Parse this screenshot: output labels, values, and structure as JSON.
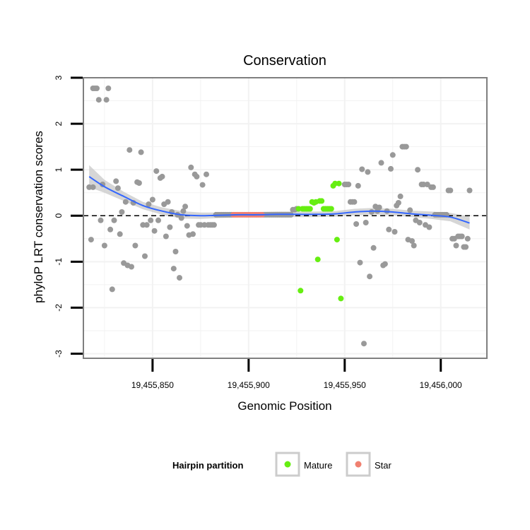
{
  "chart_data": {
    "type": "scatter",
    "title": "Conservation",
    "xlabel": "Genomic Position",
    "ylabel": "phyloP LRT conservation scores",
    "xlim": [
      19455814,
      19456024
    ],
    "ylim": [
      -3.1,
      3.0
    ],
    "x_ticks": [
      {
        "value": 19455850,
        "label": "19,455,850"
      },
      {
        "value": 19455900,
        "label": "19,455,900"
      },
      {
        "value": 19455950,
        "label": "19,455,950"
      },
      {
        "value": 19456000,
        "label": "19,456,000"
      }
    ],
    "y_ticks": [
      {
        "value": -3,
        "label": "-3"
      },
      {
        "value": -2,
        "label": "-2"
      },
      {
        "value": -1,
        "label": "-1"
      },
      {
        "value": 0,
        "label": "0"
      },
      {
        "value": 1,
        "label": "1"
      },
      {
        "value": 2,
        "label": "2"
      },
      {
        "value": 3,
        "label": "3"
      }
    ],
    "reference_line": {
      "y": 0,
      "style": "dashed",
      "color": "#000000"
    },
    "colors": {
      "other": "#999999",
      "mature": "#66ee11",
      "star": "#f08070",
      "smooth": "#3366ff",
      "ribbon": "#c8c8c8",
      "grid": "#f2f2f2",
      "border": "#7f7f7f"
    },
    "series": [
      {
        "name": "Other",
        "in_legend": false,
        "points": [
          [
            19455817,
            0.62
          ],
          [
            19455818,
            -0.52
          ],
          [
            19455819,
            2.77
          ],
          [
            19455819,
            0.62
          ],
          [
            19455820,
            2.77
          ],
          [
            19455821,
            2.77
          ],
          [
            19455822,
            2.52
          ],
          [
            19455823,
            -0.1
          ],
          [
            19455824,
            0.68
          ],
          [
            19455825,
            -0.65
          ],
          [
            19455826,
            2.52
          ],
          [
            19455827,
            2.77
          ],
          [
            19455828,
            -0.3
          ],
          [
            19455829,
            -1.6
          ],
          [
            19455830,
            -0.1
          ],
          [
            19455831,
            0.75
          ],
          [
            19455832,
            0.6
          ],
          [
            19455833,
            -0.4
          ],
          [
            19455834,
            0.08
          ],
          [
            19455835,
            -1.03
          ],
          [
            19455836,
            0.3
          ],
          [
            19455837,
            -1.08
          ],
          [
            19455838,
            1.43
          ],
          [
            19455839,
            -1.11
          ],
          [
            19455840,
            0.28
          ],
          [
            19455841,
            -0.65
          ],
          [
            19455842,
            0.73
          ],
          [
            19455843,
            0.71
          ],
          [
            19455844,
            1.38
          ],
          [
            19455845,
            -0.2
          ],
          [
            19455846,
            -0.88
          ],
          [
            19455847,
            -0.2
          ],
          [
            19455848,
            0.25
          ],
          [
            19455849,
            -0.1
          ],
          [
            19455850,
            0.35
          ],
          [
            19455851,
            -0.33
          ],
          [
            19455852,
            0.97
          ],
          [
            19455853,
            -0.1
          ],
          [
            19455854,
            0.82
          ],
          [
            19455855,
            0.85
          ],
          [
            19455856,
            0.25
          ],
          [
            19455857,
            -0.45
          ],
          [
            19455858,
            0.3
          ],
          [
            19455859,
            -0.25
          ],
          [
            19455860,
            0.08
          ],
          [
            19455861,
            -1.15
          ],
          [
            19455862,
            -0.78
          ],
          [
            19455863,
            0.02
          ],
          [
            19455864,
            -1.35
          ],
          [
            19455865,
            -0.05
          ],
          [
            19455866,
            0.1
          ],
          [
            19455867,
            0.2
          ],
          [
            19455868,
            -0.22
          ],
          [
            19455869,
            -0.42
          ],
          [
            19455870,
            1.05
          ],
          [
            19455871,
            -0.4
          ],
          [
            19455872,
            0.9
          ],
          [
            19455873,
            0.85
          ],
          [
            19455874,
            -0.2
          ],
          [
            19455875,
            -0.2
          ],
          [
            19455876,
            0.67
          ],
          [
            19455877,
            -0.2
          ],
          [
            19455878,
            0.9
          ],
          [
            19455879,
            -0.2
          ],
          [
            19455880,
            -0.2
          ],
          [
            19455881,
            -0.2
          ],
          [
            19455882,
            -0.2
          ],
          [
            19455883,
            0.02
          ],
          [
            19455884,
            0.02
          ],
          [
            19455885,
            0.02
          ],
          [
            19455886,
            0.02
          ],
          [
            19455887,
            0.02
          ],
          [
            19455888,
            0.02
          ],
          [
            19455889,
            0.02
          ],
          [
            19455890,
            0.02
          ],
          [
            19455891,
            0.02
          ],
          [
            19455908,
            0.02
          ],
          [
            19455909,
            0.02
          ],
          [
            19455910,
            0.02
          ],
          [
            19455911,
            0.02
          ],
          [
            19455912,
            0.02
          ],
          [
            19455913,
            0.02
          ],
          [
            19455914,
            0.02
          ],
          [
            19455915,
            0.02
          ],
          [
            19455916,
            0.02
          ],
          [
            19455917,
            0.02
          ],
          [
            19455918,
            0.02
          ],
          [
            19455919,
            0.02
          ],
          [
            19455920,
            0.02
          ],
          [
            19455921,
            0.02
          ],
          [
            19455922,
            0.02
          ],
          [
            19455923,
            0.13
          ],
          [
            19455924,
            0.13
          ],
          [
            19455925,
            0.15
          ],
          [
            19455950,
            0.68
          ],
          [
            19455951,
            0.68
          ],
          [
            19455952,
            0.68
          ],
          [
            19455953,
            0.3
          ],
          [
            19455954,
            0.3
          ],
          [
            19455955,
            0.3
          ],
          [
            19455956,
            -0.18
          ],
          [
            19455957,
            0.65
          ],
          [
            19455958,
            -1.02
          ],
          [
            19455959,
            1.01
          ],
          [
            19455960,
            -2.78
          ],
          [
            19455961,
            -0.15
          ],
          [
            19455962,
            0.95
          ],
          [
            19455963,
            -1.32
          ],
          [
            19455964,
            0.08
          ],
          [
            19455965,
            -0.7
          ],
          [
            19455966,
            0.2
          ],
          [
            19455967,
            0.1
          ],
          [
            19455968,
            0.18
          ],
          [
            19455969,
            1.15
          ],
          [
            19455970,
            -1.08
          ],
          [
            19455971,
            -1.05
          ],
          [
            19455972,
            0.1
          ],
          [
            19455973,
            -0.3
          ],
          [
            19455974,
            1.02
          ],
          [
            19455975,
            1.32
          ],
          [
            19455976,
            -0.35
          ],
          [
            19455977,
            0.22
          ],
          [
            19455978,
            0.28
          ],
          [
            19455979,
            0.42
          ],
          [
            19455980,
            1.5
          ],
          [
            19455981,
            1.5
          ],
          [
            19455982,
            1.5
          ],
          [
            19455983,
            -0.52
          ],
          [
            19455984,
            0.12
          ],
          [
            19455985,
            -0.55
          ],
          [
            19455986,
            -0.65
          ],
          [
            19455987,
            -0.1
          ],
          [
            19455988,
            1.0
          ],
          [
            19455989,
            -0.15
          ],
          [
            19455990,
            0.68
          ],
          [
            19455991,
            0.68
          ],
          [
            19455992,
            -0.2
          ],
          [
            19455993,
            0.68
          ],
          [
            19455994,
            -0.25
          ],
          [
            19455995,
            0.62
          ],
          [
            19455996,
            0.62
          ],
          [
            19455997,
            0.02
          ],
          [
            19455998,
            0.02
          ],
          [
            19455999,
            0.02
          ],
          [
            19456000,
            0.02
          ],
          [
            19456001,
            0.02
          ],
          [
            19456002,
            0.02
          ],
          [
            19456003,
            0.02
          ],
          [
            19456004,
            0.55
          ],
          [
            19456005,
            0.55
          ],
          [
            19456006,
            -0.5
          ],
          [
            19456007,
            -0.5
          ],
          [
            19456008,
            -0.65
          ],
          [
            19456009,
            -0.45
          ],
          [
            19456010,
            -0.45
          ],
          [
            19456011,
            -0.45
          ],
          [
            19456012,
            -0.68
          ],
          [
            19456013,
            -0.68
          ],
          [
            19456014,
            -0.5
          ],
          [
            19456015,
            0.55
          ]
        ]
      },
      {
        "name": "Mature",
        "in_legend": true,
        "points": [
          [
            19455926,
            0.15
          ],
          [
            19455927,
            -1.63
          ],
          [
            19455928,
            0.15
          ],
          [
            19455929,
            0.15
          ],
          [
            19455930,
            0.15
          ],
          [
            19455931,
            0.15
          ],
          [
            19455932,
            0.15
          ],
          [
            19455933,
            0.3
          ],
          [
            19455934,
            0.28
          ],
          [
            19455935,
            0.3
          ],
          [
            19455936,
            -0.95
          ],
          [
            19455937,
            0.32
          ],
          [
            19455938,
            0.32
          ],
          [
            19455939,
            0.15
          ],
          [
            19455940,
            0.15
          ],
          [
            19455941,
            0.15
          ],
          [
            19455942,
            0.15
          ],
          [
            19455943,
            0.15
          ],
          [
            19455944,
            0.65
          ],
          [
            19455945,
            0.7
          ],
          [
            19455946,
            -0.52
          ],
          [
            19455947,
            0.7
          ],
          [
            19455948,
            -1.8
          ]
        ]
      },
      {
        "name": "Star",
        "in_legend": true,
        "points": [
          [
            19455892,
            0.02
          ],
          [
            19455893,
            0.02
          ],
          [
            19455894,
            0.02
          ],
          [
            19455895,
            0.02
          ],
          [
            19455896,
            0.02
          ],
          [
            19455897,
            0.02
          ],
          [
            19455898,
            0.02
          ],
          [
            19455899,
            0.02
          ],
          [
            19455900,
            0.02
          ],
          [
            19455901,
            0.02
          ],
          [
            19455902,
            0.02
          ],
          [
            19455903,
            0.02
          ],
          [
            19455904,
            0.02
          ],
          [
            19455905,
            0.02
          ],
          [
            19455906,
            0.02
          ],
          [
            19455907,
            0.02
          ]
        ]
      }
    ],
    "smooth": {
      "method": "loess",
      "x": [
        19455817,
        19455825,
        19455835,
        19455845,
        19455855,
        19455865,
        19455875,
        19455885,
        19455895,
        19455905,
        19455915,
        19455925,
        19455935,
        19455945,
        19455955,
        19455965,
        19455975,
        19455985,
        19455995,
        19456005,
        19456015
      ],
      "y": [
        0.85,
        0.63,
        0.42,
        0.22,
        0.1,
        0.02,
        0.0,
        0.01,
        0.02,
        0.02,
        0.03,
        0.03,
        0.03,
        0.04,
        0.08,
        0.1,
        0.08,
        0.04,
        0.01,
        -0.03,
        -0.16
      ],
      "lower": [
        0.62,
        0.5,
        0.32,
        0.14,
        0.02,
        -0.06,
        -0.07,
        -0.05,
        -0.04,
        -0.04,
        -0.03,
        -0.03,
        -0.03,
        -0.02,
        0.01,
        0.03,
        0.01,
        -0.03,
        -0.07,
        -0.12,
        -0.3
      ],
      "upper": [
        1.1,
        0.78,
        0.52,
        0.3,
        0.18,
        0.1,
        0.07,
        0.07,
        0.08,
        0.08,
        0.09,
        0.09,
        0.09,
        0.1,
        0.15,
        0.17,
        0.15,
        0.11,
        0.09,
        0.06,
        -0.02
      ]
    },
    "legend": {
      "title": "Hairpin partition",
      "position": "bottom",
      "entries": [
        {
          "label": "Mature",
          "color": "#66ee11"
        },
        {
          "label": "Star",
          "color": "#f08070"
        }
      ]
    }
  }
}
